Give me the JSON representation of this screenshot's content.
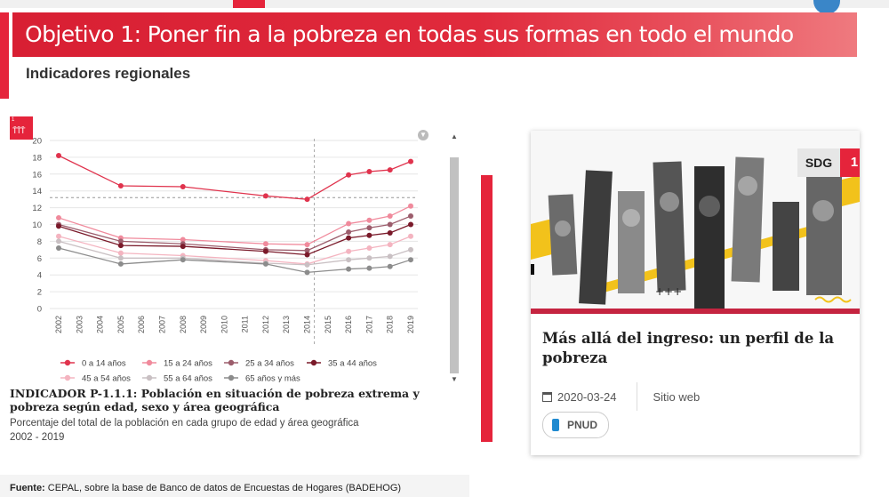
{
  "header": {
    "title": "Objetivo 1: Poner fin a la pobreza en todas sus formas en todo el mundo",
    "subtitle": "Indicadores regionales"
  },
  "colors": {
    "accent": "#e5243b",
    "card_divider": "#c52440"
  },
  "chart_data": {
    "type": "line",
    "x": [
      "2002",
      "2003",
      "2004",
      "2005",
      "2006",
      "2007",
      "2008",
      "2009",
      "2010",
      "2011",
      "2012",
      "2013",
      "2014",
      "2015",
      "2016",
      "2017",
      "2018",
      "2019"
    ],
    "ylim": [
      0,
      20
    ],
    "yticks": [
      0,
      2,
      4,
      6,
      8,
      10,
      12,
      14,
      16,
      18,
      20
    ],
    "grid": true,
    "reference_line_x": "2014",
    "legend_position": "bottom",
    "series": [
      {
        "name": "0 a 14 años",
        "color": "#e0334d",
        "values": [
          18.2,
          null,
          null,
          14.6,
          null,
          null,
          14.5,
          null,
          null,
          null,
          13.4,
          null,
          13.0,
          null,
          15.9,
          16.3,
          16.5,
          17.5
        ]
      },
      {
        "name": "15 a 24 años",
        "color": "#f08a9c",
        "values": [
          10.8,
          null,
          null,
          8.4,
          null,
          null,
          8.2,
          null,
          null,
          null,
          7.7,
          null,
          7.6,
          null,
          10.1,
          10.5,
          11.0,
          12.2
        ]
      },
      {
        "name": "25 a 34 años",
        "color": "#9c5d6c",
        "values": [
          10.0,
          null,
          null,
          8.0,
          null,
          null,
          7.7,
          null,
          null,
          null,
          7.0,
          null,
          6.9,
          null,
          9.1,
          9.6,
          10.0,
          11.0
        ]
      },
      {
        "name": "35 a 44 años",
        "color": "#7a1a2a",
        "values": [
          9.8,
          null,
          null,
          7.5,
          null,
          null,
          7.4,
          null,
          null,
          null,
          6.8,
          null,
          6.4,
          null,
          8.4,
          8.7,
          9.0,
          10.0
        ]
      },
      {
        "name": "45 a 54 años",
        "color": "#f4b4c0",
        "values": [
          8.6,
          null,
          null,
          6.6,
          null,
          null,
          6.3,
          null,
          null,
          null,
          5.7,
          null,
          5.3,
          null,
          6.8,
          7.2,
          7.6,
          8.6
        ]
      },
      {
        "name": "55 a 64 años",
        "color": "#c9c0c3",
        "values": [
          8.0,
          null,
          null,
          6.0,
          null,
          null,
          6.0,
          null,
          null,
          null,
          5.4,
          null,
          5.2,
          null,
          5.8,
          6.0,
          6.2,
          7.0
        ]
      },
      {
        "name": "65 años y más",
        "color": "#8c8c8c",
        "values": [
          7.2,
          null,
          null,
          5.3,
          null,
          null,
          5.8,
          null,
          null,
          null,
          5.3,
          null,
          4.3,
          null,
          4.7,
          4.8,
          5.0,
          5.8
        ]
      }
    ]
  },
  "indicator": {
    "title": "INDICADOR P-1.1.1: Población en situación de pobreza extrema y pobreza según edad, sexo y área geográfica",
    "description": "Porcentaje del total de la población en cada grupo de edad y área geográfica",
    "years": "2002 - 2019"
  },
  "source": {
    "label": "Fuente:",
    "text": "CEPAL, sobre la base de Banco de datos de Encuestas de Hogares (BADEHOG)"
  },
  "card": {
    "sdg_label": "SDG",
    "sdg_number": "1",
    "title": "Más allá del ingreso: un perfil de la pobreza",
    "date": "2020-03-24",
    "type": "Sitio web",
    "org": "PNUD"
  }
}
